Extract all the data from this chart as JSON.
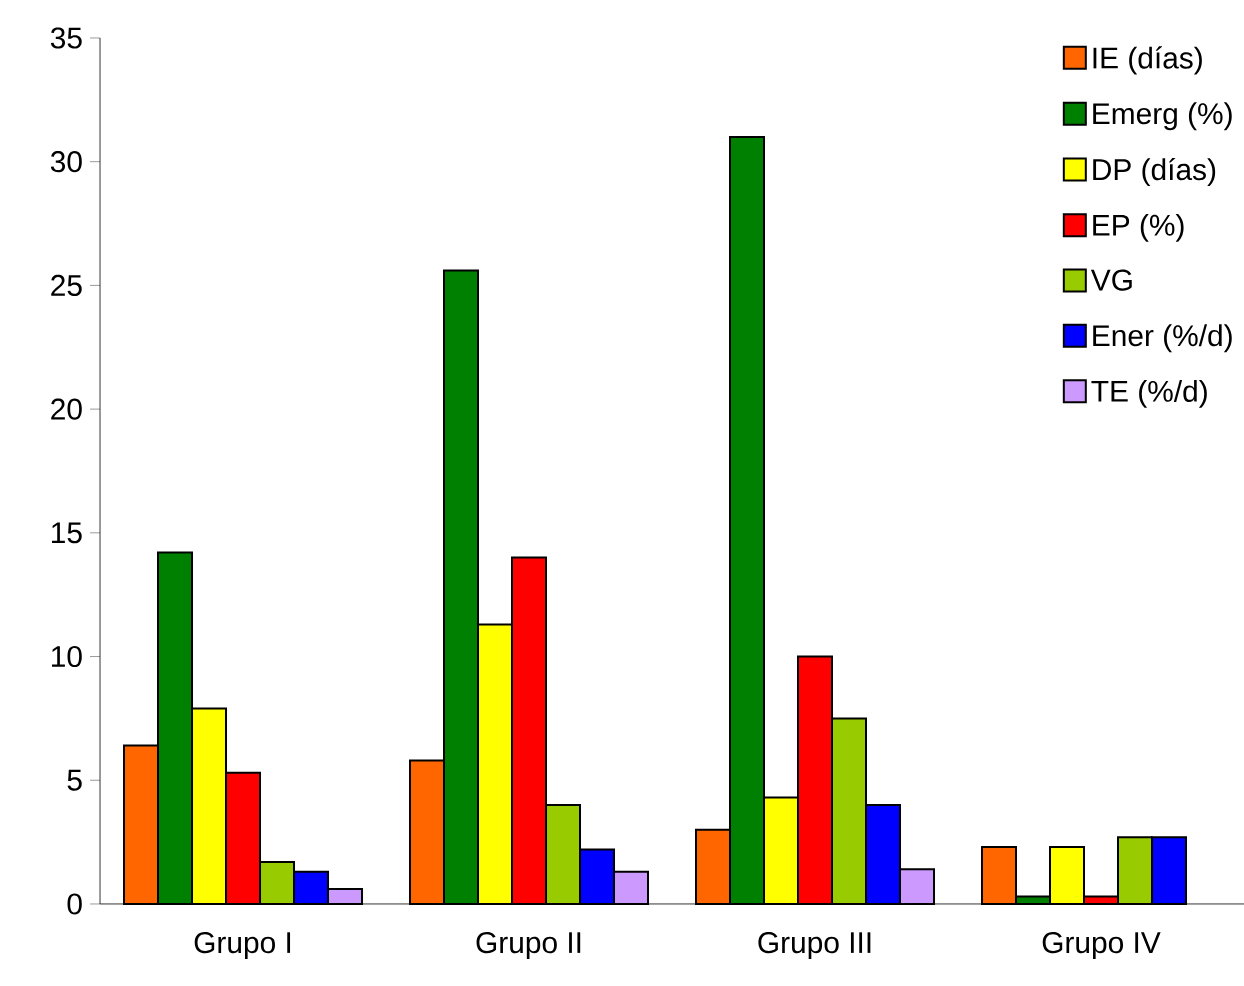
{
  "chart_data": {
    "type": "bar",
    "categories": [
      "Grupo I",
      "Grupo II",
      "Grupo III",
      "Grupo IV"
    ],
    "series": [
      {
        "name": "IE (días)",
        "color": "#ff6600",
        "values": [
          6.4,
          5.8,
          3.0,
          2.3
        ]
      },
      {
        "name": "Emerg (%)",
        "color": "#008000",
        "values": [
          14.2,
          25.6,
          31.0,
          0.3
        ]
      },
      {
        "name": "DP (días)",
        "color": "#ffff00",
        "values": [
          7.9,
          11.3,
          4.3,
          2.3
        ]
      },
      {
        "name": "EP (%)",
        "color": "#ff0000",
        "values": [
          5.3,
          14.0,
          10.0,
          0.3
        ]
      },
      {
        "name": "VG",
        "color": "#99cc00",
        "values": [
          1.7,
          4.0,
          7.5,
          2.7
        ]
      },
      {
        "name": "Ener (%/d)",
        "color": "#0000ff",
        "values": [
          1.3,
          2.2,
          4.0,
          2.7
        ]
      },
      {
        "name": "TE (%/d)",
        "color": "#cc99ff",
        "values": [
          0.6,
          1.3,
          1.4,
          null
        ]
      }
    ],
    "ylim": [
      0,
      35
    ],
    "yticks": [
      0,
      5,
      10,
      15,
      20,
      25,
      30,
      35
    ],
    "grid": false,
    "legend": "top right"
  }
}
